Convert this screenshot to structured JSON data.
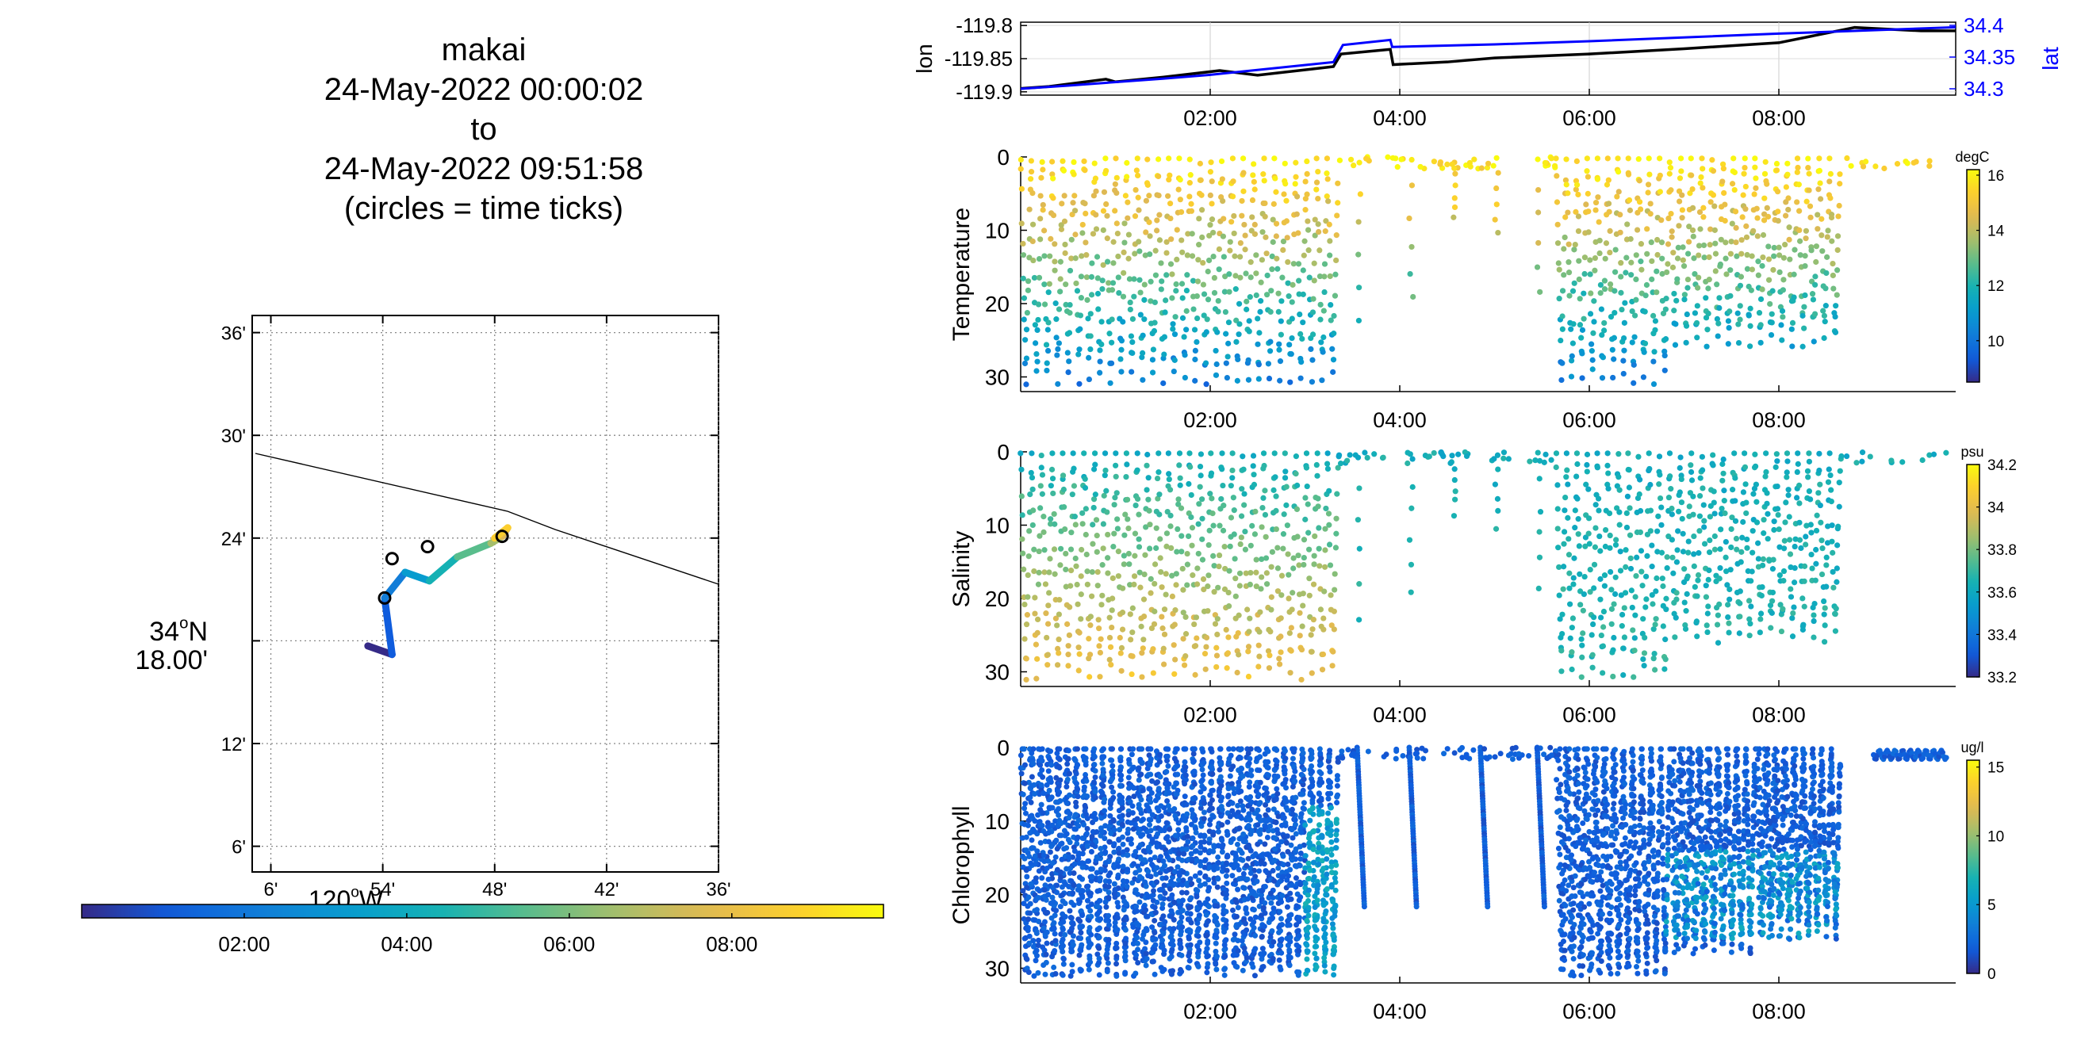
{
  "title": {
    "line1": "makai",
    "line2": "24-May-2022 00:00:02",
    "line3": "to",
    "line4": "24-May-2022 09:51:58",
    "line5": "(circles = time ticks)"
  },
  "map": {
    "lat_ticks": [
      "36'",
      "30'",
      "24'",
      "18.00'",
      "12'",
      "6'"
    ],
    "lat_degree_label": "34",
    "lat_degree_suffix": "N",
    "lon_ticks": [
      "6'",
      "54'",
      "48'",
      "42'",
      "36'"
    ],
    "lon_degree_label": "120",
    "lon_degree_suffix": "W",
    "coastline_color": "#000000",
    "track_marker": "circle"
  },
  "time_colorbar": {
    "ticks": [
      "02:00",
      "04:00",
      "06:00",
      "08:00"
    ],
    "colormap": "parula"
  },
  "time_ticks": [
    "02:00",
    "04:00",
    "06:00",
    "08:00"
  ],
  "position_panel": {
    "left_label": "lon",
    "right_label": "lat",
    "left_ticks": [
      "-119.8",
      "-119.85",
      "-119.9"
    ],
    "right_ticks": [
      "34.4",
      "34.35",
      "34.3"
    ],
    "lon_color": "#000000",
    "lat_color": "#0000ff"
  },
  "depth_ticks": [
    "0",
    "10",
    "20",
    "30"
  ],
  "panels": [
    {
      "ylabel": "Temperature",
      "unit": "degC",
      "cb_ticks": [
        "16",
        "14",
        "12",
        "10"
      ]
    },
    {
      "ylabel": "Salinity",
      "unit": "psu",
      "cb_ticks": [
        "34.2",
        "34",
        "33.8",
        "33.6",
        "33.4",
        "33.2"
      ]
    },
    {
      "ylabel": "Chlorophyll",
      "unit": "ug/l",
      "cb_ticks": [
        "15",
        "10",
        "5",
        "0"
      ]
    }
  ],
  "chart_data": [
    {
      "type": "line",
      "name": "position time series",
      "x_range_hours": [
        0,
        9.866
      ],
      "series": [
        {
          "name": "lon",
          "x": [
            0,
            0.3,
            0.9,
            1.0,
            1.5,
            2.1,
            2.5,
            3.3,
            3.38,
            3.9,
            3.93,
            4.5,
            5.0,
            6.0,
            7.0,
            8.0,
            8.8,
            9.5,
            9.866
          ],
          "values": [
            -119.895,
            -119.892,
            -119.881,
            -119.885,
            -119.878,
            -119.868,
            -119.875,
            -119.862,
            -119.843,
            -119.836,
            -119.859,
            -119.855,
            -119.849,
            -119.843,
            -119.835,
            -119.826,
            -119.803,
            -119.808,
            -119.808
          ]
        },
        {
          "name": "lat",
          "x": [
            0,
            0.5,
            1.5,
            2.0,
            3.3,
            3.4,
            3.9,
            3.92,
            5.0,
            6.0,
            8.0,
            9.866
          ],
          "values": [
            34.3,
            34.305,
            34.316,
            34.322,
            34.342,
            34.369,
            34.377,
            34.366,
            34.37,
            34.375,
            34.387,
            34.397
          ]
        }
      ],
      "ylim_left": [
        -119.905,
        -119.795
      ],
      "ylim_right": [
        34.29,
        34.405
      ]
    },
    {
      "type": "scatter",
      "name": "Temperature",
      "x_range_hours": [
        0,
        9.866
      ],
      "ylim": [
        0,
        32
      ],
      "y_reversed": true,
      "color_range": [
        8.5,
        16.2
      ],
      "surface_value": 16,
      "bottom_value": 10.5,
      "dive_windows_hours": [
        [
          0.0,
          3.35
        ],
        [
          5.65,
          6.85
        ],
        [
          6.85,
          8.65
        ]
      ],
      "dive_max_depth": [
        30,
        30,
        25
      ]
    },
    {
      "type": "scatter",
      "name": "Salinity",
      "x_range_hours": [
        0,
        9.866
      ],
      "ylim": [
        0,
        32
      ],
      "y_reversed": true,
      "color_range": [
        33.2,
        34.2
      ],
      "dive_windows_hours": [
        [
          0.0,
          3.35
        ],
        [
          5.65,
          6.85
        ],
        [
          6.85,
          8.65
        ]
      ],
      "dive_max_depth": [
        30,
        30,
        25
      ]
    },
    {
      "type": "scatter",
      "name": "Chlorophyll",
      "x_range_hours": [
        0,
        9.866
      ],
      "ylim": [
        0,
        32
      ],
      "y_reversed": true,
      "color_range": [
        0,
        15.5
      ],
      "dive_windows_hours": [
        [
          0.0,
          1.15
        ],
        [
          1.15,
          2.2
        ],
        [
          2.2,
          3.35
        ],
        [
          5.65,
          6.85
        ],
        [
          6.85,
          7.75
        ],
        [
          7.75,
          8.65
        ]
      ],
      "dive_max_depth": [
        30,
        30,
        30,
        30,
        27,
        25
      ]
    },
    {
      "type": "line",
      "name": "map track",
      "x_minutes_west": [
        54.8,
        53.5,
        53.9,
        52.8,
        51.5,
        50.0,
        48.2,
        47.6,
        47.3,
        48.0
      ],
      "y_minutes_north": [
        17.7,
        17.2,
        20.5,
        22.0,
        21.5,
        22.9,
        23.7,
        24.1,
        24.6,
        24.0
      ]
    }
  ]
}
